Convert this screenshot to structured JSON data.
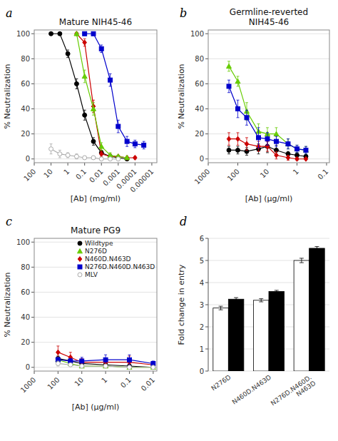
{
  "chart_data": [
    {
      "type": "line",
      "panel_label": "a",
      "title": "Mature  NIH45-46",
      "xlabel": "[Ab] (mg/ml)",
      "ylabel": "% Neutralization",
      "log": "x",
      "xlim": [
        100,
        5e-06
      ],
      "xticks": [
        100,
        10,
        1,
        0.1,
        0.01,
        0.001,
        0.0001,
        1e-05
      ],
      "ylim": [
        -3,
        103
      ],
      "yticks": [
        0,
        20,
        40,
        60,
        80,
        100
      ],
      "grid": "y",
      "series": [
        {
          "color": "#000000",
          "marker": "circle",
          "x": [
            10,
            3,
            1,
            0.3,
            0.1,
            0.03,
            0.01,
            0.003,
            0.001,
            0.0003
          ],
          "values": [
            100,
            100,
            84,
            60,
            35,
            14,
            5,
            2,
            1,
            0
          ],
          "errors": [
            1,
            1,
            3,
            4,
            4,
            3,
            2,
            1,
            1,
            1
          ]
        },
        {
          "color": "#cc0000",
          "marker": "diamond",
          "x": [
            0.3,
            0.1,
            0.03,
            0.01,
            0.003,
            0.001,
            0.0003,
            0.0001
          ],
          "values": [
            100,
            93,
            42,
            4,
            2,
            2,
            1,
            1
          ],
          "errors": [
            1,
            3,
            5,
            2,
            2,
            1,
            1,
            1
          ]
        },
        {
          "color": "#66cc00",
          "marker": "triangle",
          "x": [
            0.3,
            0.1,
            0.03,
            0.01,
            0.003,
            0.001,
            0.0003
          ],
          "values": [
            100,
            66,
            40,
            10,
            3,
            2,
            1
          ],
          "errors": [
            1,
            5,
            5,
            3,
            2,
            1,
            1
          ]
        },
        {
          "color": "#0000cc",
          "marker": "square",
          "x": [
            0.1,
            0.03,
            0.01,
            0.003,
            0.001,
            0.0003,
            0.0001,
            3e-05
          ],
          "values": [
            100,
            100,
            88,
            63,
            26,
            14,
            12,
            11
          ],
          "errors": [
            1,
            1,
            3,
            5,
            5,
            4,
            3,
            3
          ]
        },
        {
          "color": "#aaaaaa",
          "marker": "circle-open",
          "x": [
            10,
            3,
            1,
            0.3,
            0.1,
            0.03,
            0.01,
            0.003,
            0.001
          ],
          "values": [
            8,
            4,
            3,
            2,
            1,
            1,
            0,
            0,
            0
          ],
          "errors": [
            4,
            3,
            2,
            2,
            1,
            1,
            1,
            0,
            0
          ]
        }
      ]
    },
    {
      "type": "line",
      "panel_label": "b",
      "title": "Germline-reverted\nNIH45-46",
      "xlabel": "[Ab] (μg/ml)",
      "ylabel": "% Neutralization",
      "log": "x",
      "xlim": [
        1000,
        0.08
      ],
      "xticks": [
        1000,
        100,
        10,
        1,
        0.1
      ],
      "ylim": [
        -3,
        103
      ],
      "yticks": [
        0,
        20,
        40,
        60,
        80,
        100
      ],
      "grid": "y",
      "series": [
        {
          "color": "#000000",
          "marker": "circle",
          "x": [
            200,
            100,
            50,
            20,
            10,
            5,
            2,
            1,
            0.5
          ],
          "values": [
            7,
            7,
            6,
            8,
            10,
            7,
            4,
            3,
            2
          ],
          "errors": [
            3,
            3,
            3,
            4,
            5,
            4,
            2,
            2,
            1
          ]
        },
        {
          "color": "#cc0000",
          "marker": "diamond",
          "x": [
            200,
            100,
            50,
            20,
            10,
            5,
            2,
            1,
            0.5
          ],
          "values": [
            16,
            16,
            12,
            10,
            10,
            3,
            1,
            0,
            0
          ],
          "errors": [
            5,
            5,
            5,
            4,
            4,
            3,
            2,
            1,
            1
          ]
        },
        {
          "color": "#66cc00",
          "marker": "triangle",
          "x": [
            200,
            100,
            50,
            20,
            10,
            5,
            2,
            1,
            0.5
          ],
          "values": [
            74,
            62,
            38,
            22,
            20,
            20,
            12,
            8,
            7
          ],
          "errors": [
            4,
            4,
            7,
            6,
            5,
            5,
            4,
            3,
            3
          ]
        },
        {
          "color": "#0000cc",
          "marker": "square",
          "x": [
            200,
            100,
            50,
            20,
            10,
            5,
            2,
            1,
            0.5
          ],
          "values": [
            58,
            40,
            33,
            17,
            16,
            14,
            12,
            8,
            7
          ],
          "errors": [
            5,
            7,
            6,
            8,
            5,
            4,
            4,
            3,
            3
          ]
        }
      ]
    },
    {
      "type": "line",
      "panel_label": "c",
      "title": "Mature  PG9",
      "xlabel": "[Ab] (μg/ml)",
      "ylabel": "% Neutralization",
      "log": "x",
      "xlim": [
        1000,
        0.007
      ],
      "xticks": [
        1000,
        100,
        10,
        1,
        0.1,
        0.01
      ],
      "ylim": [
        -3,
        103
      ],
      "yticks": [
        0,
        20,
        40,
        60,
        80,
        100
      ],
      "grid": "y",
      "legend": "upper right",
      "series": [
        {
          "name": "Wildtype",
          "color": "#000000",
          "marker": "circle",
          "x": [
            100,
            30,
            10,
            1,
            0.1,
            0.01
          ],
          "values": [
            7,
            5,
            3,
            2,
            1,
            0
          ],
          "errors": [
            2,
            2,
            1,
            1,
            1,
            0
          ]
        },
        {
          "name": "N276D",
          "color": "#66cc00",
          "marker": "triangle",
          "x": [
            100,
            30,
            10,
            1,
            0.1,
            0.01
          ],
          "values": [
            6,
            3,
            1,
            1,
            0,
            0
          ],
          "errors": [
            2,
            2,
            1,
            1,
            0,
            0
          ]
        },
        {
          "name": "N460D.N463D",
          "color": "#cc0000",
          "marker": "diamond",
          "x": [
            100,
            30,
            10,
            1,
            0.1,
            0.01
          ],
          "values": [
            12,
            8,
            4,
            4,
            4,
            2
          ],
          "errors": [
            5,
            4,
            3,
            3,
            5,
            2
          ]
        },
        {
          "name": "N276D.N460D.N463D",
          "color": "#0000cc",
          "marker": "square",
          "x": [
            100,
            30,
            10,
            1,
            0.1,
            0.01
          ],
          "values": [
            6,
            5,
            5,
            6,
            6,
            3
          ],
          "errors": [
            2,
            2,
            3,
            4,
            4,
            2
          ]
        },
        {
          "name": "MLV",
          "color": "#aaaaaa",
          "marker": "circle-open",
          "x": [
            100,
            30,
            10,
            1,
            0.1,
            0.01
          ],
          "values": [
            3,
            2,
            1,
            1,
            0,
            0
          ],
          "errors": [
            2,
            1,
            1,
            1,
            0,
            0
          ]
        }
      ]
    },
    {
      "type": "bar",
      "panel_label": "d",
      "ylabel": "Fold change in entry",
      "categories": [
        "N276D",
        "N460D.N463D",
        "N276D.N460D.\nN463D"
      ],
      "ylim": [
        0,
        6
      ],
      "yticks": [
        0,
        1,
        2,
        3,
        4,
        5,
        6
      ],
      "grid": "y",
      "series": [
        {
          "color": "#ffffff",
          "values": [
            2.85,
            3.2,
            5.0
          ],
          "errors": [
            0.08,
            0.07,
            0.1
          ]
        },
        {
          "color": "#000000",
          "values": [
            3.25,
            3.6,
            5.55
          ],
          "errors": [
            0.07,
            0.05,
            0.08
          ]
        }
      ]
    }
  ]
}
